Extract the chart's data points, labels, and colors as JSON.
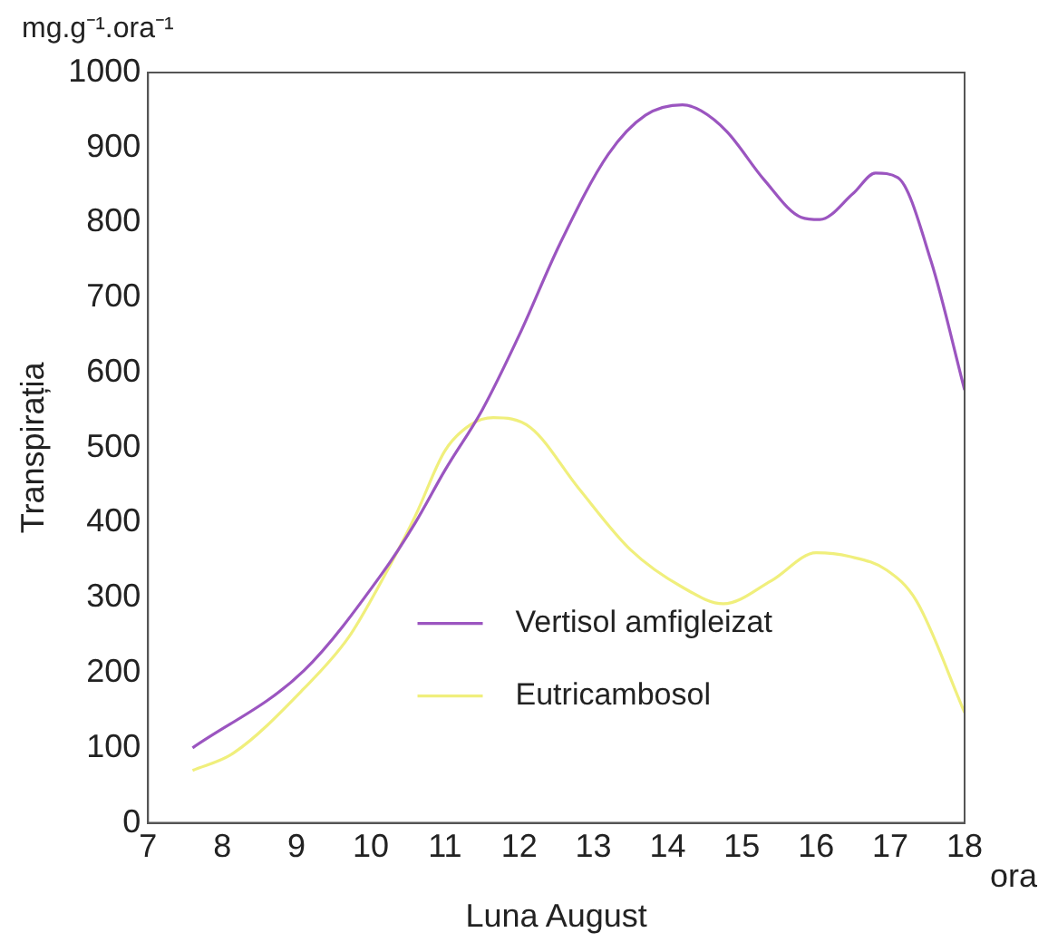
{
  "chart_data": {
    "type": "line",
    "xlabel": "Luna August",
    "ylabel": "Transpirația",
    "annotations": [
      "mg.g⁻¹.ora⁻¹",
      "ora"
    ],
    "xlim": [
      7,
      18
    ],
    "xticks": [
      7,
      8,
      9,
      10,
      11,
      12,
      13,
      14,
      15,
      16,
      17,
      18
    ],
    "ylim": [
      0,
      1000
    ],
    "yticks": [
      0,
      100,
      200,
      300,
      400,
      500,
      600,
      700,
      800,
      900,
      1000
    ],
    "grid": false,
    "legend": "bottom",
    "marker": "none",
    "line_style": "solid",
    "series": [
      {
        "name": "Vertisol amfigleizat",
        "color": "#9b55c0",
        "x": [
          7.6,
          9.1,
          10.15,
          10.6,
          11.0,
          11.5,
          12.0,
          12.55,
          13.2,
          13.7,
          14.2,
          14.45,
          14.8,
          15.3,
          15.8,
          16.05,
          16.5,
          16.8,
          17.1,
          17.55,
          18
        ],
        "values": [
          100,
          203,
          332,
          400,
          470,
          550,
          650,
          772,
          891,
          943,
          957,
          949,
          921,
          857,
          807,
          804,
          839,
          866,
          860,
          748,
          577
        ]
      },
      {
        "name": "Eutricambosol",
        "color": "#f0ef7c",
        "x": [
          7.6,
          8.15,
          9.1,
          9.7,
          10.15,
          10.6,
          11.0,
          11.35,
          11.65,
          12.15,
          12.8,
          13.5,
          14.2,
          14.75,
          15.4,
          16.0,
          16.45,
          16.95,
          17.35,
          18
        ],
        "values": [
          70,
          93,
          179,
          247,
          323,
          409,
          496,
          531,
          540,
          527,
          446,
          364,
          314,
          292,
          323,
          360,
          355,
          337,
          296,
          147
        ]
      }
    ]
  }
}
